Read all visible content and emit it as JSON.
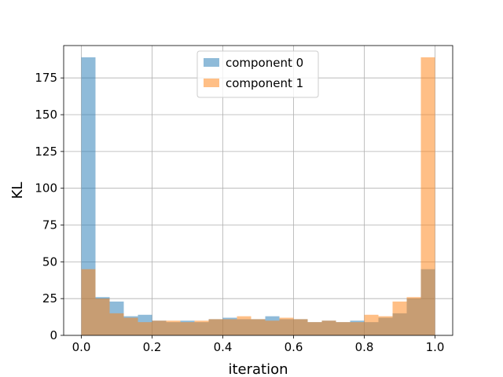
{
  "chart_data": {
    "type": "bar",
    "title": "",
    "xlabel": "iteration",
    "ylabel": "KL",
    "xlim": [
      -0.05,
      1.05
    ],
    "ylim": [
      0,
      197
    ],
    "xticks": [
      0.0,
      0.2,
      0.4,
      0.6,
      0.8,
      1.0
    ],
    "xtick_labels": [
      "0.0",
      "0.2",
      "0.4",
      "0.6",
      "0.8",
      "1.0"
    ],
    "yticks": [
      0,
      25,
      50,
      75,
      100,
      125,
      150,
      175
    ],
    "ytick_labels": [
      "0",
      "25",
      "50",
      "75",
      "100",
      "125",
      "150",
      "175"
    ],
    "grid": true,
    "legend_position": "top-center",
    "bin_edges": [
      0.0,
      0.04,
      0.08,
      0.12,
      0.16,
      0.2,
      0.24,
      0.28,
      0.32,
      0.36,
      0.4,
      0.44,
      0.48,
      0.52,
      0.56,
      0.6,
      0.64,
      0.68,
      0.72,
      0.76,
      0.8,
      0.84,
      0.88,
      0.92,
      0.96,
      1.0
    ],
    "series": [
      {
        "name": "component 0",
        "color": "#1f77b4",
        "alpha": 0.5,
        "values": [
          189,
          26,
          23,
          13,
          14,
          10,
          9,
          10,
          9,
          11,
          12,
          11,
          11,
          13,
          11,
          11,
          9,
          10,
          9,
          10,
          9,
          12,
          15,
          25,
          45
        ]
      },
      {
        "name": "component 1",
        "color": "#ff7f0e",
        "alpha": 0.5,
        "values": [
          45,
          25,
          15,
          12,
          9,
          10,
          10,
          9,
          10,
          11,
          11,
          13,
          11,
          10,
          12,
          11,
          9,
          10,
          9,
          9,
          14,
          13,
          23,
          26,
          189
        ]
      }
    ]
  }
}
